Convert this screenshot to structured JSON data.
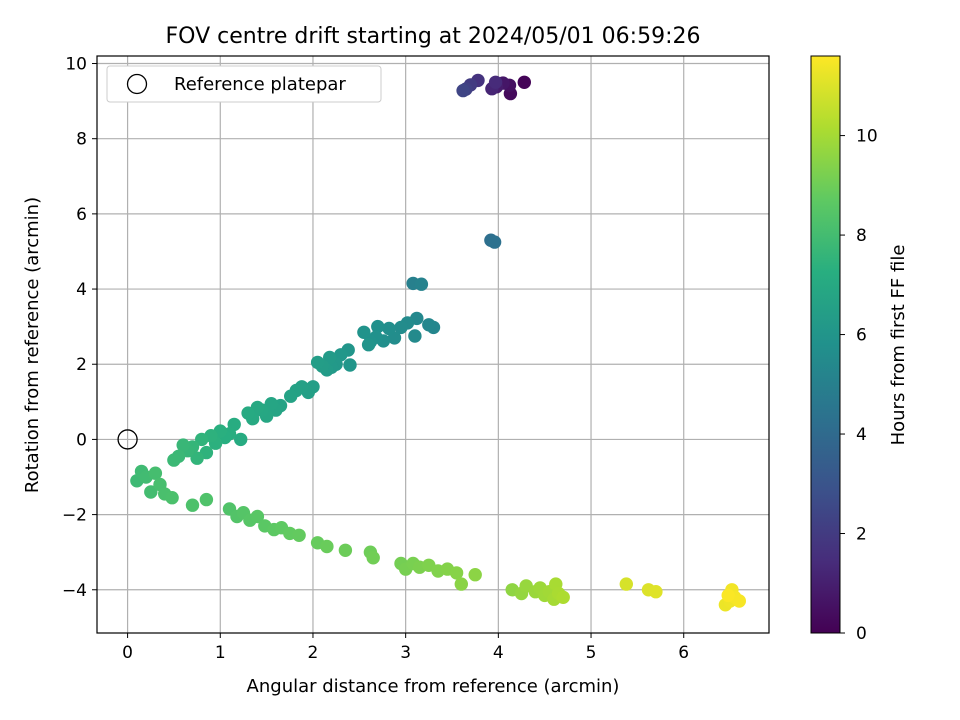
{
  "chart_data": {
    "type": "scatter",
    "title": "FOV centre drift starting at 2024/05/01 06:59:26",
    "xlabel": "Angular distance from reference (arcmin)",
    "ylabel": "Rotation from reference (arcmin)",
    "xlim": [
      -0.33,
      6.92
    ],
    "ylim": [
      -5.15,
      10.2
    ],
    "xticks": [
      0,
      1,
      2,
      3,
      4,
      5,
      6
    ],
    "yticks": [
      -4,
      -2,
      0,
      2,
      4,
      6,
      8,
      10
    ],
    "grid": true,
    "legend": {
      "placement": "top-left",
      "entries": [
        "Reference platepar"
      ]
    },
    "reference_point": {
      "x": 0,
      "y": 0
    },
    "colorbar": {
      "label": "Hours from first FF file",
      "range": [
        0,
        11.6
      ],
      "ticks": [
        0,
        2,
        4,
        6,
        8,
        10
      ],
      "colormap": "viridis"
    },
    "points": [
      {
        "x": 4.28,
        "y": 9.5,
        "h": 0.1
      },
      {
        "x": 4.13,
        "y": 9.2,
        "h": 0.3
      },
      {
        "x": 4.12,
        "y": 9.42,
        "h": 0.5
      },
      {
        "x": 4.05,
        "y": 9.48,
        "h": 0.7
      },
      {
        "x": 3.98,
        "y": 9.38,
        "h": 0.9
      },
      {
        "x": 3.93,
        "y": 9.33,
        "h": 1.2
      },
      {
        "x": 3.97,
        "y": 9.5,
        "h": 1.4
      },
      {
        "x": 3.78,
        "y": 9.55,
        "h": 1.7
      },
      {
        "x": 3.7,
        "y": 9.43,
        "h": 2.0
      },
      {
        "x": 3.65,
        "y": 9.32,
        "h": 2.2
      },
      {
        "x": 3.62,
        "y": 9.28,
        "h": 2.4
      },
      {
        "x": 3.92,
        "y": 5.3,
        "h": 4.2
      },
      {
        "x": 3.96,
        "y": 5.25,
        "h": 4.3
      },
      {
        "x": 3.08,
        "y": 4.15,
        "h": 5.0
      },
      {
        "x": 3.17,
        "y": 4.13,
        "h": 5.1
      },
      {
        "x": 3.3,
        "y": 2.98,
        "h": 5.3
      },
      {
        "x": 3.25,
        "y": 3.05,
        "h": 5.35
      },
      {
        "x": 3.12,
        "y": 3.22,
        "h": 5.4
      },
      {
        "x": 3.1,
        "y": 2.75,
        "h": 5.45
      },
      {
        "x": 3.02,
        "y": 3.1,
        "h": 5.5
      },
      {
        "x": 2.95,
        "y": 2.98,
        "h": 5.55
      },
      {
        "x": 2.88,
        "y": 2.7,
        "h": 5.6
      },
      {
        "x": 2.82,
        "y": 2.95,
        "h": 5.65
      },
      {
        "x": 2.76,
        "y": 2.62,
        "h": 5.7
      },
      {
        "x": 2.7,
        "y": 3.0,
        "h": 5.75
      },
      {
        "x": 2.68,
        "y": 2.72,
        "h": 5.8
      },
      {
        "x": 2.62,
        "y": 2.6,
        "h": 5.85
      },
      {
        "x": 2.55,
        "y": 2.85,
        "h": 5.9
      },
      {
        "x": 2.6,
        "y": 2.52,
        "h": 5.95
      },
      {
        "x": 2.38,
        "y": 2.38,
        "h": 6.0
      },
      {
        "x": 2.4,
        "y": 1.98,
        "h": 6.05
      },
      {
        "x": 2.3,
        "y": 2.25,
        "h": 6.1
      },
      {
        "x": 2.25,
        "y": 2.0,
        "h": 6.15
      },
      {
        "x": 2.2,
        "y": 1.92,
        "h": 6.2
      },
      {
        "x": 2.18,
        "y": 2.18,
        "h": 6.25
      },
      {
        "x": 2.15,
        "y": 1.85,
        "h": 6.3
      },
      {
        "x": 2.1,
        "y": 1.95,
        "h": 6.35
      },
      {
        "x": 2.05,
        "y": 2.05,
        "h": 6.4
      },
      {
        "x": 2.0,
        "y": 1.4,
        "h": 6.45
      },
      {
        "x": 1.95,
        "y": 1.25,
        "h": 6.5
      },
      {
        "x": 1.88,
        "y": 1.4,
        "h": 6.55
      },
      {
        "x": 1.82,
        "y": 1.3,
        "h": 6.6
      },
      {
        "x": 1.76,
        "y": 1.15,
        "h": 6.65
      },
      {
        "x": 1.65,
        "y": 0.9,
        "h": 6.7
      },
      {
        "x": 1.6,
        "y": 0.78,
        "h": 6.75
      },
      {
        "x": 1.55,
        "y": 0.95,
        "h": 6.8
      },
      {
        "x": 1.5,
        "y": 0.62,
        "h": 6.85
      },
      {
        "x": 1.45,
        "y": 0.78,
        "h": 6.9
      },
      {
        "x": 1.4,
        "y": 0.85,
        "h": 6.95
      },
      {
        "x": 1.35,
        "y": 0.55,
        "h": 7.0
      },
      {
        "x": 1.3,
        "y": 0.7,
        "h": 7.05
      },
      {
        "x": 1.22,
        "y": 0.0,
        "h": 7.1
      },
      {
        "x": 1.15,
        "y": 0.4,
        "h": 7.15
      },
      {
        "x": 1.1,
        "y": 0.15,
        "h": 7.2
      },
      {
        "x": 1.05,
        "y": 0.05,
        "h": 7.25
      },
      {
        "x": 1.0,
        "y": 0.22,
        "h": 7.3
      },
      {
        "x": 0.95,
        "y": -0.1,
        "h": 7.35
      },
      {
        "x": 0.9,
        "y": 0.1,
        "h": 7.4
      },
      {
        "x": 0.85,
        "y": -0.35,
        "h": 7.45
      },
      {
        "x": 0.8,
        "y": 0.0,
        "h": 7.5
      },
      {
        "x": 0.75,
        "y": -0.5,
        "h": 7.55
      },
      {
        "x": 0.7,
        "y": -0.2,
        "h": 7.6
      },
      {
        "x": 0.65,
        "y": -0.3,
        "h": 7.65
      },
      {
        "x": 0.6,
        "y": -0.15,
        "h": 7.7
      },
      {
        "x": 0.55,
        "y": -0.45,
        "h": 7.75
      },
      {
        "x": 0.5,
        "y": -0.55,
        "h": 7.8
      },
      {
        "x": 0.1,
        "y": -1.1,
        "h": 7.85
      },
      {
        "x": 0.15,
        "y": -0.85,
        "h": 7.9
      },
      {
        "x": 0.2,
        "y": -1.0,
        "h": 7.95
      },
      {
        "x": 0.25,
        "y": -1.4,
        "h": 8.0
      },
      {
        "x": 0.3,
        "y": -0.9,
        "h": 8.05
      },
      {
        "x": 0.35,
        "y": -1.2,
        "h": 8.1
      },
      {
        "x": 0.4,
        "y": -1.45,
        "h": 8.15
      },
      {
        "x": 0.48,
        "y": -1.55,
        "h": 8.2
      },
      {
        "x": 0.7,
        "y": -1.75,
        "h": 8.25
      },
      {
        "x": 0.85,
        "y": -1.6,
        "h": 8.3
      },
      {
        "x": 1.1,
        "y": -1.85,
        "h": 8.35
      },
      {
        "x": 1.18,
        "y": -2.05,
        "h": 8.4
      },
      {
        "x": 1.25,
        "y": -1.95,
        "h": 8.45
      },
      {
        "x": 1.32,
        "y": -2.15,
        "h": 8.5
      },
      {
        "x": 1.4,
        "y": -2.05,
        "h": 8.55
      },
      {
        "x": 1.48,
        "y": -2.3,
        "h": 8.6
      },
      {
        "x": 1.58,
        "y": -2.4,
        "h": 8.65
      },
      {
        "x": 1.66,
        "y": -2.35,
        "h": 8.7
      },
      {
        "x": 1.75,
        "y": -2.5,
        "h": 8.75
      },
      {
        "x": 1.85,
        "y": -2.55,
        "h": 8.8
      },
      {
        "x": 2.05,
        "y": -2.75,
        "h": 8.85
      },
      {
        "x": 2.15,
        "y": -2.85,
        "h": 8.9
      },
      {
        "x": 2.35,
        "y": -2.95,
        "h": 8.95
      },
      {
        "x": 2.62,
        "y": -3.0,
        "h": 9.0
      },
      {
        "x": 2.65,
        "y": -3.15,
        "h": 9.05
      },
      {
        "x": 2.95,
        "y": -3.3,
        "h": 9.1
      },
      {
        "x": 3.0,
        "y": -3.45,
        "h": 9.15
      },
      {
        "x": 3.08,
        "y": -3.3,
        "h": 9.2
      },
      {
        "x": 3.15,
        "y": -3.4,
        "h": 9.25
      },
      {
        "x": 3.25,
        "y": -3.35,
        "h": 9.3
      },
      {
        "x": 3.35,
        "y": -3.5,
        "h": 9.35
      },
      {
        "x": 3.45,
        "y": -3.45,
        "h": 9.4
      },
      {
        "x": 3.55,
        "y": -3.55,
        "h": 9.45
      },
      {
        "x": 3.6,
        "y": -3.85,
        "h": 9.5
      },
      {
        "x": 3.75,
        "y": -3.6,
        "h": 9.55
      },
      {
        "x": 4.15,
        "y": -4.0,
        "h": 9.6
      },
      {
        "x": 4.25,
        "y": -4.1,
        "h": 9.7
      },
      {
        "x": 4.3,
        "y": -3.9,
        "h": 9.75
      },
      {
        "x": 4.4,
        "y": -4.05,
        "h": 9.8
      },
      {
        "x": 4.45,
        "y": -3.95,
        "h": 9.85
      },
      {
        "x": 4.5,
        "y": -4.15,
        "h": 9.9
      },
      {
        "x": 4.55,
        "y": -4.05,
        "h": 9.95
      },
      {
        "x": 4.6,
        "y": -4.25,
        "h": 10.0
      },
      {
        "x": 4.62,
        "y": -3.85,
        "h": 10.05
      },
      {
        "x": 4.65,
        "y": -4.1,
        "h": 10.1
      },
      {
        "x": 4.7,
        "y": -4.2,
        "h": 10.15
      },
      {
        "x": 5.38,
        "y": -3.85,
        "h": 10.9
      },
      {
        "x": 5.62,
        "y": -4.0,
        "h": 11.0
      },
      {
        "x": 5.7,
        "y": -4.05,
        "h": 11.05
      },
      {
        "x": 6.45,
        "y": -4.4,
        "h": 11.3
      },
      {
        "x": 6.5,
        "y": -4.3,
        "h": 11.35
      },
      {
        "x": 6.52,
        "y": -4.0,
        "h": 11.4
      },
      {
        "x": 6.55,
        "y": -4.2,
        "h": 11.45
      },
      {
        "x": 6.6,
        "y": -4.3,
        "h": 11.5
      },
      {
        "x": 6.48,
        "y": -4.15,
        "h": 11.55
      }
    ]
  }
}
